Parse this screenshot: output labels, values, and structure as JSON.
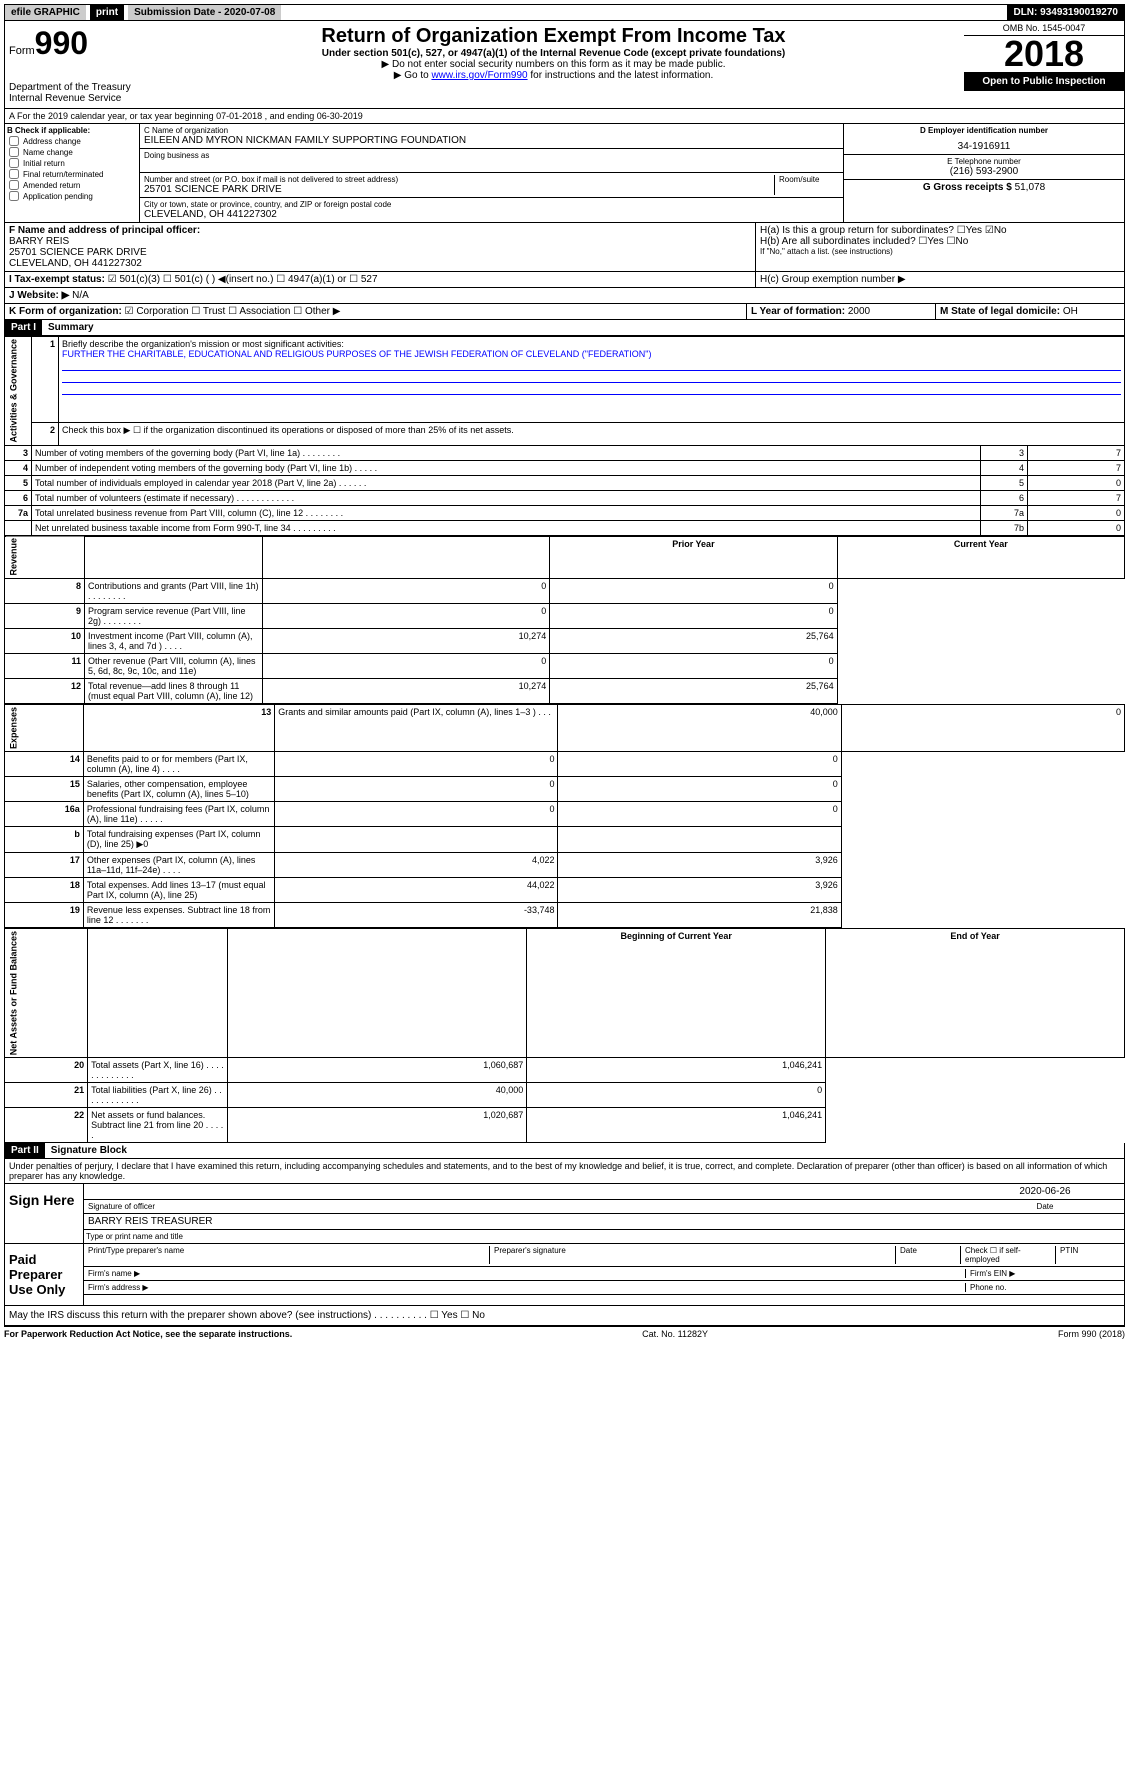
{
  "topbar": {
    "efile": "efile GRAPHIC",
    "print": "print",
    "sub_label": "Submission Date - 2020-07-08",
    "dln": "DLN: 93493190019270"
  },
  "header": {
    "form_small": "Form",
    "form_big": "990",
    "title": "Return of Organization Exempt From Income Tax",
    "subtitle": "Under section 501(c), 527, or 4947(a)(1) of the Internal Revenue Code (except private foundations)",
    "note1": "▶ Do not enter social security numbers on this form as it may be made public.",
    "note2_pre": "▶ Go to ",
    "note2_link": "www.irs.gov/Form990",
    "note2_post": " for instructions and the latest information.",
    "dept1": "Department of the Treasury",
    "dept2": "Internal Revenue Service",
    "omb": "OMB No. 1545-0047",
    "year": "2018",
    "open": "Open to Public Inspection"
  },
  "a_line": "A For the 2019 calendar year, or tax year beginning 07-01-2018   , and ending 06-30-2019",
  "b": {
    "label": "B Check if applicable:",
    "opts": [
      "Address change",
      "Name change",
      "Initial return",
      "Final return/terminated",
      "Amended return",
      "Application pending"
    ]
  },
  "c": {
    "name_label": "C Name of organization",
    "name": "EILEEN AND MYRON NICKMAN FAMILY SUPPORTING FOUNDATION",
    "dba_label": "Doing business as",
    "addr_label": "Number and street (or P.O. box if mail is not delivered to street address)",
    "room_label": "Room/suite",
    "addr": "25701 SCIENCE PARK DRIVE",
    "city_label": "City or town, state or province, country, and ZIP or foreign postal code",
    "city": "CLEVELAND, OH  441227302"
  },
  "d": {
    "label": "D Employer identification number",
    "value": "34-1916911"
  },
  "e": {
    "label": "E Telephone number",
    "value": "(216) 593-2900"
  },
  "g": {
    "label": "G Gross receipts $",
    "value": "51,078"
  },
  "f": {
    "label": "F  Name and address of principal officer:",
    "name": "BARRY REIS",
    "addr1": "25701 SCIENCE PARK DRIVE",
    "addr2": "CLEVELAND, OH  441227302"
  },
  "h": {
    "ha": "H(a)  Is this a group return for subordinates?",
    "hb": "H(b)  Are all subordinates included?",
    "hb_note": "If \"No,\" attach a list. (see instructions)",
    "hc": "H(c)  Group exemption number ▶",
    "yes": "Yes",
    "no": "No"
  },
  "i": {
    "label": "I  Tax-exempt status:",
    "c3": "501(c)(3)",
    "c": "501(c) (  ) ◀(insert no.)",
    "a1": "4947(a)(1) or",
    "s527": "527"
  },
  "j": {
    "label": "J  Website: ▶",
    "value": "N/A"
  },
  "k": {
    "label": "K Form of organization:",
    "corp": "Corporation",
    "trust": "Trust",
    "assoc": "Association",
    "other": "Other ▶"
  },
  "l": {
    "label": "L Year of formation:",
    "value": "2000"
  },
  "m": {
    "label": "M State of legal domicile:",
    "value": "OH"
  },
  "part1": {
    "label": "Part I",
    "title": "Summary"
  },
  "summary": {
    "l1_label": "Briefly describe the organization's mission or most significant activities:",
    "l1_text": "FURTHER THE CHARITABLE, EDUCATIONAL AND RELIGIOUS PURPOSES OF THE JEWISH FEDERATION OF CLEVELAND (\"FEDERATION\")",
    "l2": "Check this box ▶ ☐  if the organization discontinued its operations or disposed of more than 25% of its net assets.",
    "rows_gov": [
      {
        "n": "3",
        "d": "Number of voting members of the governing body (Part VI, line 1a)  .   .   .   .   .   .   .   .",
        "bn": "3",
        "v": "7"
      },
      {
        "n": "4",
        "d": "Number of independent voting members of the governing body (Part VI, line 1b)  .   .   .   .   .",
        "bn": "4",
        "v": "7"
      },
      {
        "n": "5",
        "d": "Total number of individuals employed in calendar year 2018 (Part V, line 2a)  .    .   .   .   .   .",
        "bn": "5",
        "v": "0"
      },
      {
        "n": "6",
        "d": "Total number of volunteers (estimate if necessary)  .   .    .   .   .   .   .   .   .   .   .   .",
        "bn": "6",
        "v": "7"
      },
      {
        "n": "7a",
        "d": "Total unrelated business revenue from Part VIII, column (C), line 12  .   .   .    .   .   .   .   .",
        "bn": "7a",
        "v": "0"
      },
      {
        "n": "",
        "d": "Net unrelated business taxable income from Form 990-T, line 34  .   .   .   .   .   .   .   .   .",
        "bn": "7b",
        "v": "0"
      }
    ],
    "prior": "Prior Year",
    "current": "Current Year",
    "rows_rev": [
      {
        "n": "8",
        "d": "Contributions and grants (Part VIII, line 1h)  .    .   .   .   .   .   .   .",
        "p": "0",
        "c": "0"
      },
      {
        "n": "9",
        "d": "Program service revenue (Part VIII, line 2g)  .   .   .   .   .   .   .   .",
        "p": "0",
        "c": "0"
      },
      {
        "n": "10",
        "d": "Investment income (Part VIII, column (A), lines 3, 4, and 7d )  .   .   .   .",
        "p": "10,274",
        "c": "25,764"
      },
      {
        "n": "11",
        "d": "Other revenue (Part VIII, column (A), lines 5, 6d, 8c, 9c, 10c, and 11e)",
        "p": "0",
        "c": "0"
      },
      {
        "n": "12",
        "d": "Total revenue—add lines 8 through 11 (must equal Part VIII, column (A), line 12)",
        "p": "10,274",
        "c": "25,764"
      }
    ],
    "rows_exp": [
      {
        "n": "13",
        "d": "Grants and similar amounts paid (Part IX, column (A), lines 1–3 )  .   .   .",
        "p": "40,000",
        "c": "0"
      },
      {
        "n": "14",
        "d": "Benefits paid to or for members (Part IX, column (A), line 4)  .   .   .   .",
        "p": "0",
        "c": "0"
      },
      {
        "n": "15",
        "d": "Salaries, other compensation, employee benefits (Part IX, column (A), lines 5–10)",
        "p": "0",
        "c": "0"
      },
      {
        "n": "16a",
        "d": "Professional fundraising fees (Part IX, column (A), line 11e)  .   .   .   .   .",
        "p": "0",
        "c": "0"
      },
      {
        "n": "b",
        "d": "Total fundraising expenses (Part IX, column (D), line 25) ▶0",
        "p": "",
        "c": ""
      },
      {
        "n": "17",
        "d": "Other expenses (Part IX, column (A), lines 11a–11d, 11f–24e)  .   .   .   .",
        "p": "4,022",
        "c": "3,926"
      },
      {
        "n": "18",
        "d": "Total expenses. Add lines 13–17 (must equal Part IX, column (A), line 25)",
        "p": "44,022",
        "c": "3,926"
      },
      {
        "n": "19",
        "d": "Revenue less expenses. Subtract line 18 from line 12  .   .   .   .   .   .   .",
        "p": "-33,748",
        "c": "21,838"
      }
    ],
    "begin": "Beginning of Current Year",
    "end": "End of Year",
    "rows_na": [
      {
        "n": "20",
        "d": "Total assets (Part X, line 16)  .   .   .   .   .   .   .   .   .   .   .   .   .",
        "p": "1,060,687",
        "c": "1,046,241"
      },
      {
        "n": "21",
        "d": "Total liabilities (Part X, line 26)  .   .   .   .   .   .   .   .   .   .   .   .",
        "p": "40,000",
        "c": "0"
      },
      {
        "n": "22",
        "d": "Net assets or fund balances. Subtract line 21 from line 20  .   .   .   .   .",
        "p": "1,020,687",
        "c": "1,046,241"
      }
    ],
    "v_gov": "Activities & Governance",
    "v_rev": "Revenue",
    "v_exp": "Expenses",
    "v_na": "Net Assets or Fund Balances"
  },
  "part2": {
    "label": "Part II",
    "title": "Signature Block"
  },
  "sig": {
    "perjury": "Under penalties of perjury, I declare that I have examined this return, including accompanying schedules and statements, and to the best of my knowledge and belief, it is true, correct, and complete. Declaration of preparer (other than officer) is based on all information of which preparer has any knowledge.",
    "sign_here": "Sign Here",
    "sig_officer": "Signature of officer",
    "date": "2020-06-26",
    "date_label": "Date",
    "name": "BARRY REIS  TREASURER",
    "name_label": "Type or print name and title",
    "paid": "Paid Preparer Use Only",
    "prep_name": "Print/Type preparer's name",
    "prep_sig": "Preparer's signature",
    "prep_date": "Date",
    "check_self": "Check ☐ if self-employed",
    "ptin": "PTIN",
    "firm_name": "Firm's name  ▶",
    "firm_ein": "Firm's EIN ▶",
    "firm_addr": "Firm's address ▶",
    "phone": "Phone no.",
    "discuss": "May the IRS discuss this return with the preparer shown above? (see instructions)   .    .    .   .    .    .    .    .    .   .   ☐ Yes  ☐ No"
  },
  "footer": {
    "left": "For Paperwork Reduction Act Notice, see the separate instructions.",
    "mid": "Cat. No. 11282Y",
    "right": "Form 990 (2018)"
  }
}
